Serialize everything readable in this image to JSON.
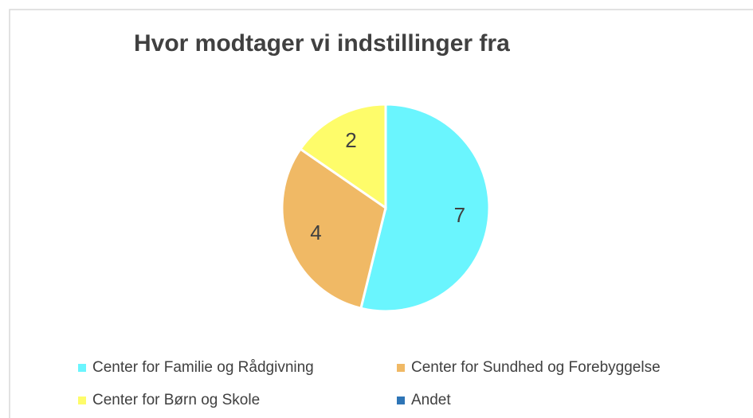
{
  "chart_data": {
    "type": "pie",
    "title": "Hvor modtager vi indstillinger fra",
    "categories": [
      "Center for Familie og Rådgivning",
      "Center for Sundhed og Forebyggelse",
      "Center for Børn og Skole",
      "Andet"
    ],
    "values": [
      7,
      4,
      2,
      0
    ],
    "colors": [
      "#6af5fe",
      "#f0b965",
      "#fefc6a",
      "#2e75b6"
    ],
    "legend": "bottom"
  }
}
